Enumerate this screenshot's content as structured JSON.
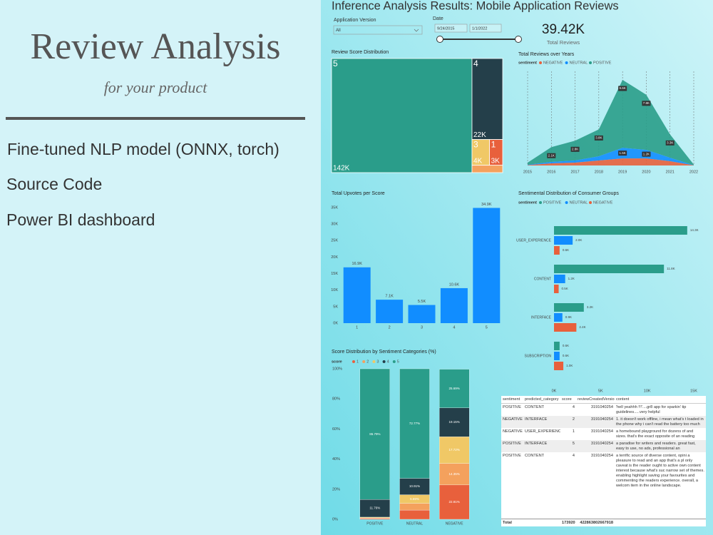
{
  "slide": {
    "title": "Review Analysis",
    "subtitle": "for your product",
    "links": [
      "Fine-tuned NLP model (ONNX, torch)",
      "Source Code",
      "Power BI dashboard"
    ]
  },
  "dashboard": {
    "title": "Inference Analysis Results: Mobile Application Reviews",
    "filters": {
      "version_label": "Application Version",
      "version_value": "All",
      "date_label": "Date",
      "date_start": "9/24/2015",
      "date_end": "1/1/2022"
    },
    "kpi": {
      "value": "39.42K",
      "label": "Total Reviews"
    }
  },
  "chart_data": [
    {
      "type": "treemap",
      "title": "Review Score Distribution",
      "categories": [
        "5",
        "4",
        "3",
        "1",
        null
      ],
      "values": [
        142000,
        22000,
        4000,
        3000,
        2000
      ],
      "value_labels": [
        "142K",
        "22K",
        "4K",
        "3K",
        null
      ],
      "colors": [
        "#2a9d8a",
        "#243f4a",
        "#f0c866",
        "#e8603c",
        "#f4a15d"
      ]
    },
    {
      "type": "area",
      "title": "Total Reviews over Years",
      "legend_title": "sentiment",
      "x": [
        2015,
        2016,
        2017,
        2018,
        2019,
        2020,
        2021,
        2022
      ],
      "xlim": [
        2015,
        2022
      ],
      "xticks": [
        2015,
        2016,
        2017,
        2018,
        2019,
        2020,
        2021,
        2022
      ],
      "series": [
        {
          "name": "NEGATIVE",
          "color": "#e8603c",
          "values": [
            50,
            300,
            400,
            700,
            1000,
            1000,
            600,
            20
          ],
          "value_labels": [
            null,
            null,
            null,
            null,
            null,
            null,
            null,
            null
          ]
        },
        {
          "name": "NEUTRAL",
          "color": "#118dff",
          "values": [
            50,
            200,
            300,
            600,
            1500,
            1200,
            500,
            20
          ],
          "value_labels": [
            null,
            null,
            null,
            null,
            "1.5K",
            "1.2K",
            null,
            null
          ]
        },
        {
          "name": "POSITIVE",
          "color": "#2a9d8a",
          "values": [
            300,
            2100,
            2800,
            3800,
            9600,
            7800,
            3300,
            100
          ],
          "value_labels": [
            null,
            "2.1K",
            "2.8K",
            "3.8K",
            "9.6K",
            "7.8K",
            "3.3K",
            null
          ]
        }
      ]
    },
    {
      "type": "bar",
      "title": "Total Upvotes per Score",
      "categories": [
        "1",
        "2",
        "3",
        "4",
        "5"
      ],
      "values": [
        16900,
        7100,
        5500,
        10600,
        34900
      ],
      "value_labels": [
        "16.9K",
        "7.1K",
        "5.5K",
        "10.6K",
        "34.9K"
      ],
      "color": "#118dff",
      "ylim": [
        0,
        35000
      ],
      "yticks": [
        {
          "value": 0,
          "label": "0K"
        },
        {
          "value": 5000,
          "label": "5K"
        },
        {
          "value": 10000,
          "label": "10K"
        },
        {
          "value": 15000,
          "label": "15K"
        },
        {
          "value": 20000,
          "label": "20K"
        },
        {
          "value": 25000,
          "label": "25K"
        },
        {
          "value": 30000,
          "label": "30K"
        },
        {
          "value": 35000,
          "label": "35K"
        }
      ]
    },
    {
      "type": "hbar",
      "title": "Sentimental Distribution of Consumer Groups",
      "legend_title": "sentiment",
      "categories": [
        "USER_EXPERIENCE",
        "CONTENT",
        "INTERFACE",
        "SUBSCRIPTION"
      ],
      "series": [
        {
          "name": "POSITIVE",
          "color": "#2a9d8a",
          "values": [
            14300,
            11800,
            3200,
            600
          ],
          "value_labels": [
            "14.3K",
            "11.8K",
            "3.2K",
            "0.6K"
          ]
        },
        {
          "name": "NEUTRAL",
          "color": "#118dff",
          "values": [
            2000,
            1200,
            900,
            600
          ],
          "value_labels": [
            "2.0K",
            "1.2K",
            "0.9K",
            "0.6K"
          ]
        },
        {
          "name": "NEGATIVE",
          "color": "#e8603c",
          "values": [
            600,
            500,
            2400,
            1000
          ],
          "value_labels": [
            "0.6K",
            "0.5K",
            "2.4K",
            "1.0K"
          ]
        }
      ],
      "xlim": [
        0,
        15000
      ],
      "xticks": [
        {
          "value": 0,
          "label": "0K"
        },
        {
          "value": 5000,
          "label": "5K"
        },
        {
          "value": 10000,
          "label": "10K"
        },
        {
          "value": 15000,
          "label": "15K"
        }
      ]
    },
    {
      "type": "stacked_bar",
      "title": "Score Distribution by Sentiment Categories (%)",
      "legend_title": "score",
      "categories": [
        "POSITIVE",
        "NEUTRAL",
        "NEGATIVE"
      ],
      "series": [
        {
          "name": "1",
          "color": "#e8603c",
          "values": [
            0.6,
            6.13,
            22.81
          ],
          "value_labels": [
            null,
            null,
            "22.81%"
          ]
        },
        {
          "name": "2",
          "color": "#f4a15d",
          "values": [
            0.35,
            4.5,
            14.35
          ],
          "value_labels": [
            null,
            null,
            "14.35%"
          ]
        },
        {
          "name": "3",
          "color": "#f0c866",
          "values": [
            0.5,
            5.69,
            17.72
          ],
          "value_labels": [
            null,
            "5.69%",
            "17.72%"
          ]
        },
        {
          "name": "4",
          "color": "#243f4a",
          "values": [
            11.76,
            10.91,
            19.15
          ],
          "value_labels": [
            "11.76%",
            "10.91%",
            "19.15%"
          ]
        },
        {
          "name": "5",
          "color": "#2a9d8a",
          "values": [
            86.79,
            72.77,
            25.69
          ],
          "value_labels": [
            "86.79%",
            "72.77%",
            "25.69%"
          ]
        }
      ],
      "ylim": [
        0,
        100
      ],
      "yticks": [
        {
          "value": 0,
          "label": "0%"
        },
        {
          "value": 20,
          "label": "20%"
        },
        {
          "value": 40,
          "label": "40%"
        },
        {
          "value": 60,
          "label": "60%"
        },
        {
          "value": 80,
          "label": "80%"
        },
        {
          "value": 100,
          "label": "100%"
        }
      ]
    }
  ],
  "table": {
    "columns": [
      "sentiment",
      "predicted_category",
      "score",
      "reviewCreatedVersion",
      "content"
    ],
    "rows": [
      [
        "POSITIVE",
        "CONTENT",
        4,
        3191040254,
        "'hell yeahhh !!!'....gr8 app for sparkin' tip guidelines.....very helpful"
      ],
      [
        "NEGATIVE",
        "INTERFACE",
        2,
        3191040254,
        "1. it doesn't work offline, i mean what's t loaded in the phone why i can't read the battery too much"
      ],
      [
        "NEGATIVE",
        "USER_EXPERIENCE",
        1,
        3191040254,
        "a homebound playground for dozens of and sizes. that's the exact opposite of an reading"
      ],
      [
        "POSITIVE",
        "INTERFACE",
        5,
        3191040254,
        "a paradise for writers and readers. great fast, easy to use, no ads, professional an"
      ],
      [
        "POSITIVE",
        "CONTENT",
        4,
        3191040254,
        "a terrific source of diverse content, opini a pleasure to read and an app that's a pl only caveat is the reader ought to active own content interest because what's suc narrow set of themes. enabling highlight saving your favourites and commenting the readers experience. overall, a welcom item in the online landscape."
      ]
    ],
    "total": {
      "label": "Total",
      "score": 173920,
      "version": 422863802667918
    }
  }
}
